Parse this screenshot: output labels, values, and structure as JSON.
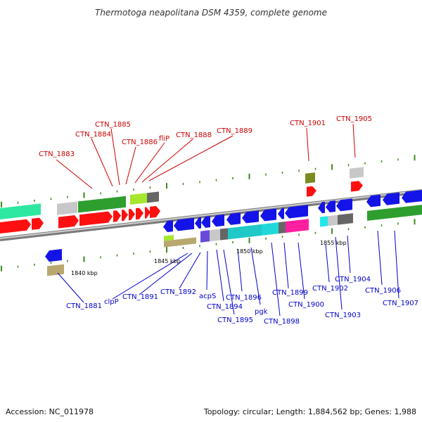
{
  "title": "Thermotoga neapolitana DSM 4359, complete genome",
  "footer": {
    "accession": "Accession: NC_011978",
    "topology": "Topology: circular; Length: 1,884,562 bp; Genes: 1,988"
  },
  "colors": {
    "backbone": "#8a8a8a",
    "forward_label": "#cc0000",
    "reverse_label": "#0000cc",
    "tick": "#3b8a1c"
  },
  "scale_labels": [
    "1840 kbp",
    "1845 kbp",
    "1850 kbp",
    "1855 kbp"
  ],
  "forward_gene_labels": [
    "CTN_1883",
    "CTN_1884",
    "CTN_1885",
    "CTN_1886",
    "fliP",
    "CTN_1888",
    "CTN_1889",
    "CTN_1901",
    "CTN_1905"
  ],
  "reverse_gene_labels": [
    "CTN_1881",
    "clpP",
    "CTN_1891",
    "CTN_1892",
    "acpS",
    "CTN_1894",
    "CTN_1895",
    "CTN_1896",
    "pgk",
    "CTN_1898",
    "CTN_1899",
    "CTN_1900",
    "CTN_1902",
    "CTN_1903",
    "CTN_1904",
    "CTN_1906",
    "CTN_1907"
  ]
}
